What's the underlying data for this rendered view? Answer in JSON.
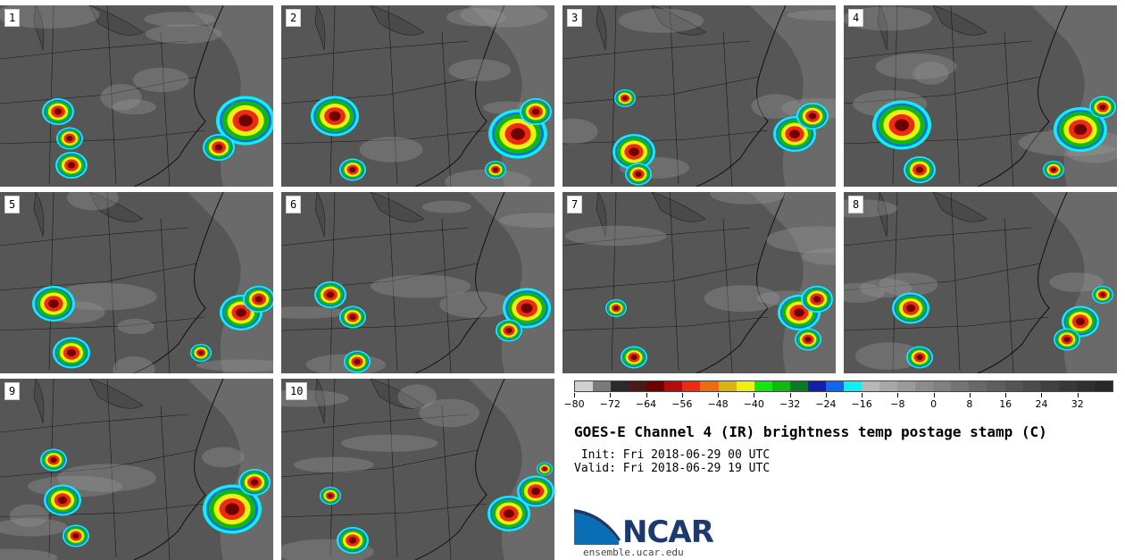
{
  "panels": [
    {
      "label": "1"
    },
    {
      "label": "2"
    },
    {
      "label": "3"
    },
    {
      "label": "4"
    },
    {
      "label": "5"
    },
    {
      "label": "6"
    },
    {
      "label": "7"
    },
    {
      "label": "8"
    },
    {
      "label": "9"
    },
    {
      "label": "10"
    }
  ],
  "colorbar": {
    "min": -80,
    "max": 40,
    "step": 4,
    "tick_labels": [
      "−80",
      "−72",
      "−64",
      "−56",
      "−48",
      "−40",
      "−32",
      "−24",
      "−16",
      "−8",
      "0",
      "8",
      "16",
      "24",
      "32"
    ],
    "colors": [
      "#d0d0d0",
      "#7a7a7a",
      "#2a2a2a",
      "#4a1a1a",
      "#6e0000",
      "#b40d0d",
      "#ee2a10",
      "#f06a10",
      "#d8b410",
      "#f0f010",
      "#10e810",
      "#10b810",
      "#0a7a28",
      "#1020a8",
      "#1068f0",
      "#10f0f0",
      "#b8b8b8",
      "#a8a8a8",
      "#9a9a9a",
      "#8c8c8c",
      "#808080",
      "#747474",
      "#686868",
      "#5e5e5e",
      "#545454",
      "#4a4a4a",
      "#404040",
      "#383838",
      "#303030",
      "#282828"
    ]
  },
  "title": "GOES-E Channel 4 (IR) brightness temp postage stamp (C)",
  "init_text": " Init: Fri 2018-06-29 00 UTC",
  "valid_text": "Valid: Fri 2018-06-29 19 UTC",
  "logo": {
    "text": "NCAR",
    "url": "ensemble.ucar.edu",
    "colors": {
      "blue": "#0a6eb4",
      "navy": "#1d3a6e"
    }
  }
}
